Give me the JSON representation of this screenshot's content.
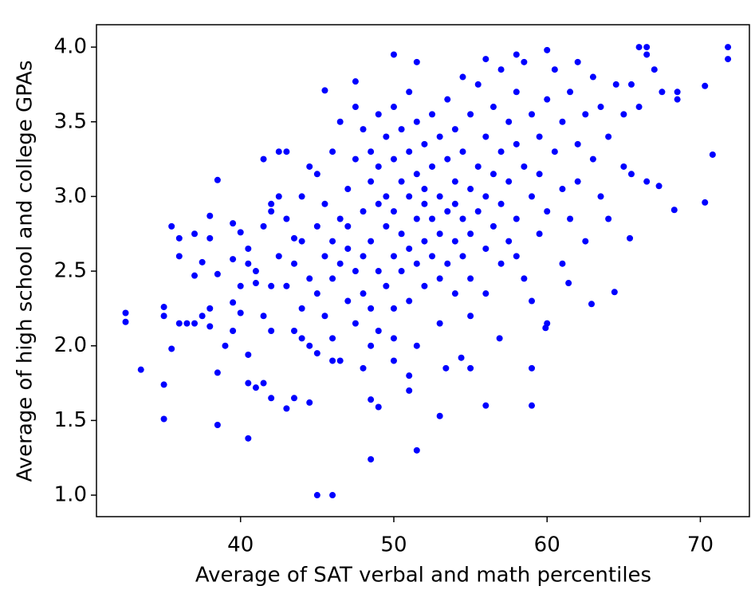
{
  "chart_data": {
    "type": "scatter",
    "x_label": "Average of SAT verbal and math percentiles",
    "y_label": "Average of high school and college GPAs",
    "color": "#0000ff",
    "xlim": [
      30.6,
      73.2
    ],
    "ylim": [
      0.856,
      4.15
    ],
    "xticks": [
      40,
      50,
      60,
      70
    ],
    "yticks": [
      {
        "value": 1,
        "label": "1.0"
      },
      1.5,
      {
        "value": 2,
        "label": "2.0"
      },
      2.5,
      {
        "value": 3,
        "label": "3.0"
      },
      3.5,
      {
        "value": 4,
        "label": "4.0"
      }
    ],
    "x": [
      32.5,
      32.5,
      33.5,
      35,
      35,
      35,
      35,
      35.5,
      35.5,
      36,
      36,
      36,
      37,
      37,
      37,
      37.5,
      37.5,
      38,
      38,
      38,
      38.5,
      38.5,
      38.5,
      38.5,
      39.5,
      39.5,
      39.5,
      39.5,
      40,
      40,
      40,
      40.5,
      40.5,
      40.5,
      40.5,
      41,
      41,
      41.5,
      41.5,
      42,
      42,
      42.5,
      43,
      43.5,
      43.5,
      44.5,
      44.5,
      45,
      46,
      45.5,
      46,
      47.5,
      48.5,
      48.5,
      49,
      50,
      51.5,
      51.5,
      53,
      56,
      59,
      59,
      56,
      58,
      60,
      66,
      66.5,
      71.8,
      71.8,
      70.3,
      70.8,
      70.3,
      68.3,
      67.3,
      65.4,
      64.4,
      62.9,
      61.4,
      59.9,
      56.9,
      55,
      53.4,
      54.4,
      51,
      51,
      50,
      48.5,
      42,
      42.5,
      43,
      43,
      43.5,
      43.5,
      44,
      44,
      44,
      44.5,
      44.5,
      45,
      45,
      45,
      45,
      45.5,
      45.5,
      45.5,
      46,
      46,
      46,
      46,
      46.5,
      46.5,
      46.5,
      46.5,
      47,
      47,
      47,
      47,
      47.5,
      47.5,
      47.5,
      47.5,
      48,
      48,
      48,
      48,
      48,
      48.5,
      48.5,
      48.5,
      48.5,
      49,
      49,
      49,
      49,
      49,
      49.5,
      49.5,
      49.5,
      49.5,
      50,
      50,
      50,
      50,
      50,
      50,
      50.5,
      50.5,
      50.5,
      50.5,
      51,
      51,
      51,
      51,
      51,
      51.5,
      51.5,
      51.5,
      51.5,
      51.5,
      52,
      52,
      52,
      52,
      52,
      52.5,
      52.5,
      52.5,
      52.5,
      53,
      53,
      53,
      53,
      53,
      53.5,
      53.5,
      53.5,
      53.5,
      54,
      54,
      54,
      54,
      54,
      54.5,
      54.5,
      54.5,
      54.5,
      55,
      55,
      55,
      55,
      55,
      55.5,
      55.5,
      55.5,
      56,
      56,
      56,
      56,
      56.5,
      56.5,
      56.5,
      57,
      57,
      57,
      57,
      57.5,
      57.5,
      57.5,
      58,
      58,
      58,
      58,
      58.5,
      58.5,
      58.5,
      59,
      59,
      59,
      59.5,
      59.5,
      59.5,
      60,
      60,
      60,
      60.5,
      60.5,
      61,
      61,
      61,
      61.5,
      61.5,
      62,
      62,
      62,
      62.5,
      62.5,
      63,
      63,
      63.5,
      63.5,
      64,
      64,
      64.5,
      65,
      65,
      65.5,
      65.5,
      66,
      66.5,
      66.5,
      67,
      67.5,
      68.5,
      68.5,
      41,
      41.5,
      41.5,
      42,
      42.5,
      40.5,
      39,
      38,
      36.5,
      43,
      44,
      42
    ],
    "values": [
      2.22,
      2.16,
      1.84,
      1.74,
      1.51,
      2.26,
      2.2,
      2.8,
      1.98,
      2.72,
      2.6,
      2.15,
      2.75,
      2.47,
      2.15,
      2.56,
      2.2,
      2.87,
      2.72,
      2.13,
      3.11,
      2.48,
      1.82,
      1.47,
      2.82,
      2.58,
      2.29,
      2.1,
      2.76,
      2.4,
      2.22,
      1.94,
      1.75,
      1.38,
      2.55,
      1.72,
      2.42,
      3.25,
      1.75,
      2.95,
      1.65,
      3.3,
      1.58,
      2.72,
      1.65,
      3.2,
      1.62,
      1.0,
      1.0,
      3.71,
      1.9,
      3.77,
      1.24,
      1.64,
      1.59,
      3.95,
      3.9,
      1.3,
      1.53,
      1.6,
      1.6,
      1.85,
      3.92,
      3.95,
      3.98,
      4.0,
      4.0,
      4.0,
      3.92,
      3.74,
      3.28,
      2.96,
      2.91,
      3.07,
      2.72,
      2.36,
      2.28,
      2.42,
      2.12,
      2.05,
      1.85,
      1.85,
      1.92,
      1.8,
      1.7,
      1.9,
      2.0,
      2.9,
      2.6,
      2.4,
      2.85,
      2.1,
      2.55,
      3.0,
      2.25,
      2.7,
      2.0,
      2.45,
      2.8,
      3.15,
      2.35,
      1.95,
      2.6,
      2.2,
      2.95,
      3.3,
      2.7,
      2.45,
      2.05,
      2.85,
      2.55,
      3.5,
      1.9,
      3.05,
      2.65,
      2.3,
      2.8,
      3.25,
      2.5,
      2.15,
      3.6,
      2.9,
      2.6,
      2.35,
      3.45,
      1.85,
      3.1,
      2.7,
      2.25,
      3.3,
      2.95,
      2.5,
      3.55,
      2.1,
      3.2,
      2.8,
      2.4,
      3.4,
      3.0,
      2.6,
      3.25,
      2.25,
      3.6,
      2.9,
      2.05,
      3.1,
      2.75,
      3.45,
      2.5,
      3.0,
      2.65,
      3.7,
      2.3,
      3.3,
      2.85,
      3.15,
      2.55,
      3.5,
      2.0,
      3.05,
      2.7,
      3.35,
      2.4,
      2.95,
      3.2,
      2.6,
      3.55,
      2.85,
      3.0,
      2.45,
      3.4,
      2.75,
      2.15,
      3.25,
      2.9,
      2.55,
      3.65,
      3.1,
      2.7,
      3.45,
      2.35,
      2.95,
      3.3,
      2.6,
      3.8,
      2.85,
      3.05,
      2.45,
      3.55,
      2.75,
      2.2,
      3.2,
      2.9,
      3.75,
      3.4,
      2.65,
      3.0,
      2.35,
      3.6,
      3.15,
      2.8,
      2.55,
      3.3,
      3.85,
      2.95,
      3.5,
      2.7,
      3.1,
      2.6,
      3.35,
      3.7,
      2.85,
      2.45,
      3.2,
      3.9,
      3.0,
      3.55,
      2.3,
      2.75,
      3.4,
      3.15,
      3.65,
      2.9,
      2.15,
      3.3,
      3.85,
      3.05,
      2.55,
      3.5,
      3.7,
      2.85,
      3.35,
      3.9,
      3.1,
      2.7,
      3.55,
      3.25,
      3.8,
      3.0,
      3.6,
      3.4,
      2.85,
      3.75,
      3.2,
      3.55,
      3.75,
      3.15,
      3.6,
      3.1,
      3.95,
      3.85,
      3.7,
      3.7,
      3.65,
      2.5,
      2.2,
      2.8,
      2.4,
      3.0,
      2.65,
      2.0,
      2.25,
      2.15,
      3.3,
      2.05,
      2.1
    ]
  }
}
